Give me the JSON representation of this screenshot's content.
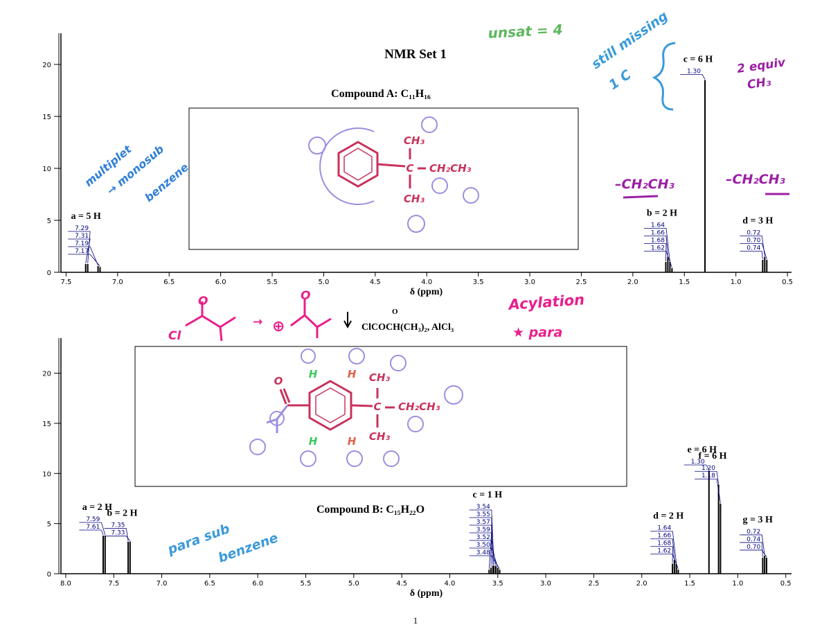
{
  "title": "NMR Set 1",
  "page_number": "1",
  "reagent": "ClCOCH(CH₃)₂, AlCl₃",
  "reagent_o": "O",
  "structures": {
    "a": [
      "CH₃",
      "C",
      "CH₂CH₃",
      "CH₃"
    ],
    "b": [
      "CH₃",
      "C",
      "CH₂CH₃",
      "CH₃",
      "O",
      "H",
      "H",
      "H",
      "H"
    ]
  },
  "annotations": [
    "unsat = 4",
    "still missing",
    "1 C",
    "2 equiv",
    "CH₃",
    "multiplet",
    "→ monosub",
    "benzene",
    "–CH₂CH₃",
    "–CH₂CH₃",
    "Acylation",
    "★ para",
    "para sub",
    "benzene",
    "Cl",
    "O",
    "→",
    "⊕",
    "O"
  ],
  "chart_data": [
    {
      "type": "spectrum",
      "subtitle": "Compound A: C₁₁H₁₆",
      "x_label": "δ (ppm)",
      "color": "#000000",
      "label_color": "#00007f",
      "xlim": [
        7.55,
        0.46
      ],
      "xticks": [
        7.5,
        {
          "value": 7,
          "label": "7.0"
        },
        6.5,
        {
          "value": 6,
          "label": "6.0"
        },
        5.5,
        {
          "value": 5,
          "label": "5.0"
        },
        4.5,
        {
          "value": 4,
          "label": "4.0"
        },
        3.5,
        {
          "value": 3,
          "label": "3.0"
        },
        2.5,
        {
          "value": 2,
          "label": "2.0"
        },
        1.5,
        {
          "value": 1,
          "label": "1.0"
        },
        0.5
      ],
      "ylim": [
        0,
        23
      ],
      "yticks": [
        0,
        5,
        10,
        15,
        20
      ],
      "groups": [
        {
          "label": "a = 5 H",
          "peaks": [
            7.29,
            7.31,
            7.19,
            7.17
          ],
          "value_labels": [
            "7.29",
            "7.31",
            "7.19",
            "7.17"
          ],
          "heights": [
            0.8,
            0.8,
            0.6,
            0.5
          ]
        },
        {
          "label": "b = 2 H",
          "peaks": [
            1.64,
            1.66,
            1.68,
            1.62
          ],
          "value_labels": [
            "1.64",
            "1.66",
            "1.68",
            "1.62"
          ],
          "heights": [
            1.0,
            1.5,
            1.0,
            0.4
          ]
        },
        {
          "label": "c = 6 H",
          "peaks": [
            1.3
          ],
          "value_labels": [
            "1.30"
          ],
          "heights": [
            18.5
          ]
        },
        {
          "label": "d = 3 H",
          "peaks": [
            0.72,
            0.7,
            0.74
          ],
          "value_labels": [
            "0.72",
            "0.70",
            "0.74"
          ],
          "heights": [
            1.5,
            1.2,
            1.2
          ]
        }
      ]
    },
    {
      "type": "spectrum",
      "subtitle": "Compound B: C₁₅H₂₂O",
      "x_label": "δ (ppm)",
      "color": "#000000",
      "label_color": "#00007f",
      "xlim": [
        8.05,
        0.44
      ],
      "xticks": [
        {
          "value": 8,
          "label": "8.0"
        },
        7.5,
        {
          "value": 7,
          "label": "7.0"
        },
        6.5,
        {
          "value": 6,
          "label": "6.0"
        },
        5.5,
        {
          "value": 5,
          "label": "5.0"
        },
        4.5,
        {
          "value": 4,
          "label": "4.0"
        },
        3.5,
        {
          "value": 3,
          "label": "3.0"
        },
        2.5,
        {
          "value": 2,
          "label": "2.0"
        },
        1.5,
        {
          "value": 1,
          "label": "1.0"
        },
        0.5
      ],
      "ylim": [
        0,
        23.5
      ],
      "yticks": [
        0,
        5,
        10,
        15,
        20
      ],
      "groups": [
        {
          "label": "a = 2 H",
          "peaks": [
            7.59,
            7.61
          ],
          "value_labels": [
            "7.59",
            "7.61"
          ],
          "heights": [
            3.8,
            3.8
          ]
        },
        {
          "label": "b = 2 H",
          "peaks": [
            7.35,
            7.33
          ],
          "value_labels": [
            "7.35",
            "7.33"
          ],
          "heights": [
            3.2,
            3.2
          ]
        },
        {
          "label": "c = 1 H",
          "peaks": [
            3.54,
            3.55,
            3.57,
            3.59,
            3.52,
            3.5,
            3.48
          ],
          "value_labels": [
            "3.54",
            "3.55",
            "3.57",
            "3.59",
            "3.52",
            "3.50",
            "3.48"
          ],
          "heights": [
            0.8,
            0.8,
            0.6,
            0.4,
            0.8,
            0.6,
            0.4
          ]
        },
        {
          "label": "d = 2 H",
          "peaks": [
            1.64,
            1.66,
            1.68,
            1.62
          ],
          "value_labels": [
            "1.64",
            "1.66",
            "1.68",
            "1.62"
          ],
          "heights": [
            1.0,
            1.4,
            1.0,
            0.4
          ]
        },
        {
          "label": "e = 6 H",
          "peaks": [
            1.3
          ],
          "value_labels": [
            "1.30"
          ],
          "heights": [
            10.3
          ]
        },
        {
          "label": "f = 6 H",
          "peaks": [
            1.2,
            1.18
          ],
          "value_labels": [
            "1.20",
            "1.18"
          ],
          "heights": [
            8.9,
            7.0
          ]
        },
        {
          "label": "g = 3 H",
          "peaks": [
            0.72,
            0.74,
            0.7
          ],
          "value_labels": [
            "0.72",
            "0.74",
            "0.70"
          ],
          "heights": [
            1.8,
            1.6,
            1.6
          ]
        }
      ]
    }
  ]
}
